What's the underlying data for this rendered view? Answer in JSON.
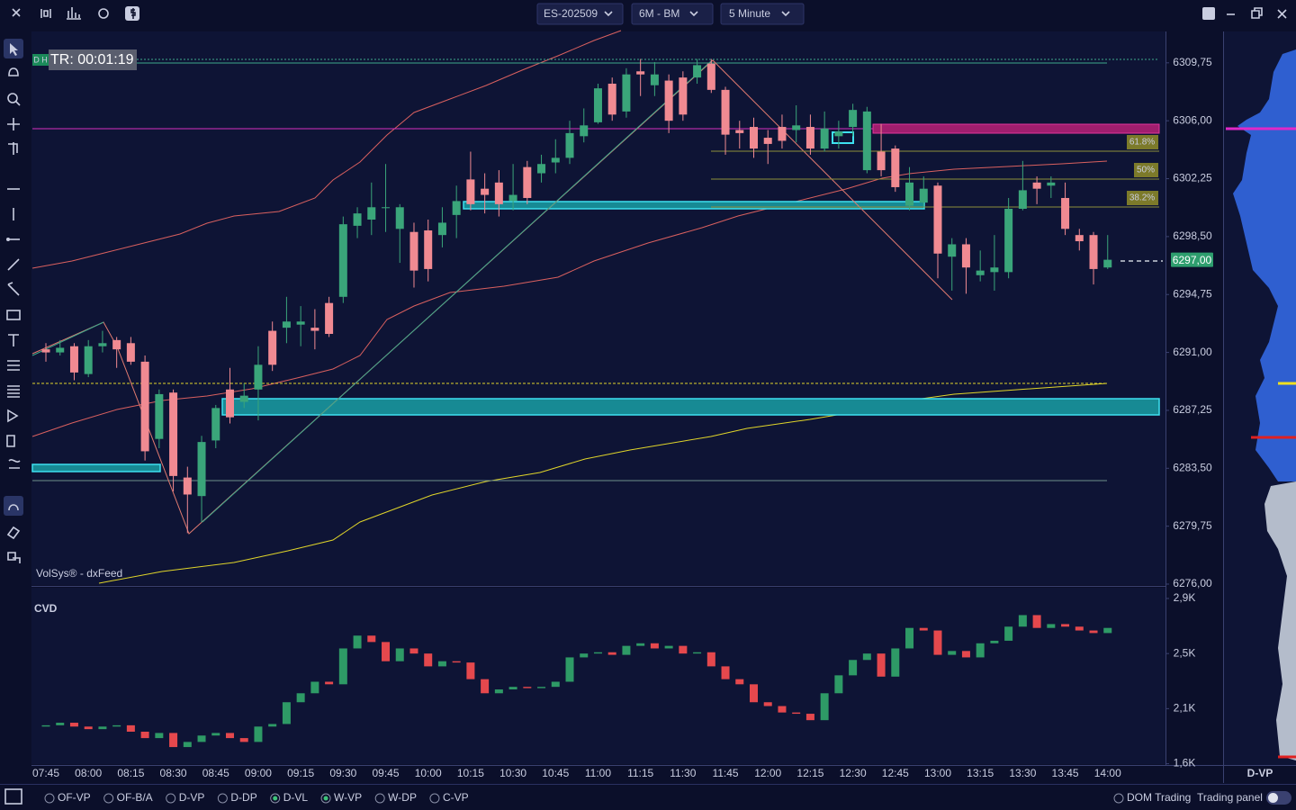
{
  "toolbar": {
    "symbol": "ES-202509",
    "range": "6M - BM",
    "interval": "5 Minute"
  },
  "timer": "TR: 00:01:19",
  "timer_tag": "D H",
  "watermark": "VolSys® - dxFeed",
  "fib_labels": [
    "61.8%",
    "50%",
    "38.2%"
  ],
  "profile_title": "D-VP",
  "footer": {
    "options": [
      {
        "label": "OF-VP",
        "selected": false
      },
      {
        "label": "OF-B/A",
        "selected": false
      },
      {
        "label": "D-VP",
        "selected": false
      },
      {
        "label": "D-DP",
        "selected": false
      },
      {
        "label": "D-VL",
        "selected": true
      },
      {
        "label": "W-VP",
        "selected": true
      },
      {
        "label": "W-DP",
        "selected": false
      },
      {
        "label": "C-VP",
        "selected": false
      }
    ],
    "dom": "DOM Trading",
    "panel": "Trading panel"
  },
  "chart_data": [
    {
      "type": "candlestick",
      "up_color": "#3aa57a",
      "down_color": "#f08a92",
      "ylim": [
        6276,
        6311.75
      ],
      "yticks": [
        {
          "value": 6309.75,
          "label": "6309,75"
        },
        {
          "value": 6306,
          "label": "6306,00"
        },
        {
          "value": 6302.25,
          "label": "6302,25"
        },
        {
          "value": 6298.5,
          "label": "6298,50"
        },
        {
          "value": 6294.75,
          "label": "6294,75"
        },
        {
          "value": 6291,
          "label": "6291,00"
        },
        {
          "value": 6287.25,
          "label": "6287,25"
        },
        {
          "value": 6283.5,
          "label": "6283,50"
        },
        {
          "value": 6279.75,
          "label": "6279,75"
        },
        {
          "value": 6276,
          "label": "6276,00"
        }
      ],
      "last_price": {
        "value": 6297,
        "label": "6297,00"
      },
      "categories": [
        "07:45",
        null,
        null,
        "08:00",
        null,
        null,
        "08:15",
        null,
        null,
        "08:30",
        null,
        null,
        "08:45",
        null,
        null,
        "09:00",
        null,
        null,
        "09:15",
        null,
        null,
        "09:30",
        null,
        null,
        "09:45",
        null,
        null,
        "10:00",
        null,
        null,
        "10:15",
        null,
        null,
        "10:30",
        null,
        null,
        "10:45",
        null,
        null,
        "11:00",
        null,
        null,
        "11:15",
        null,
        null,
        "11:30",
        null,
        null,
        "11:45",
        null,
        null,
        "12:00",
        null,
        null,
        "12:15",
        null,
        null,
        "12:30",
        null,
        null,
        "12:45",
        null,
        null,
        "13:00",
        null,
        null,
        "13:15",
        null,
        null,
        "13:30",
        null,
        null,
        "13:45",
        null,
        null,
        "14:00"
      ],
      "open": [
        6291.2,
        6291.0,
        6291.4,
        6289.6,
        6291.4,
        6291.8,
        6291.6,
        6290.4,
        6285.4,
        6288.4,
        6282.9,
        6281.7,
        6285.3,
        6288.6,
        6287.8,
        6288.6,
        6292.4,
        6292.6,
        6292.8,
        6292.6,
        6294.2,
        6294.6,
        6299.2,
        6299.6,
        6300.4,
        6299.0,
        6298.8,
        6298.9,
        6298.6,
        6299.9,
        6302.2,
        6301.6,
        6302.0,
        6300.8,
        6303.0,
        6302.6,
        6303.3,
        6303.6,
        6305.0,
        6305.9,
        6308.4,
        6306.6,
        6309.2,
        6308.3,
        6308.6,
        6308.8,
        6308.8,
        6309.7,
        6308.0,
        6305.4,
        6305.6,
        6304.9,
        6305.6,
        6305.4,
        6305.6,
        6304.2,
        6305.0,
        6305.6,
        6302.8,
        6304.0,
        6304.2,
        6300.5,
        6300.7,
        6301.8,
        6297.2,
        6298.0,
        6296.0,
        6296.2,
        6296.2,
        6300.3,
        6302.0,
        6301.8,
        6301.0,
        6298.6,
        6298.6,
        6296.5
      ],
      "high": [
        6291.6,
        6291.8,
        6291.6,
        6291.8,
        6292.4,
        6292.0,
        6292.0,
        6290.8,
        6288.6,
        6288.6,
        6283.6,
        6285.6,
        6287.6,
        6290.0,
        6289.0,
        6291.4,
        6293.0,
        6294.6,
        6294.0,
        6293.8,
        6294.6,
        6299.8,
        6300.4,
        6302.0,
        6303.2,
        6300.6,
        6299.4,
        6299.6,
        6300.4,
        6301.8,
        6304.0,
        6302.6,
        6302.8,
        6303.2,
        6303.4,
        6303.8,
        6304.8,
        6306.0,
        6306.8,
        6308.4,
        6308.8,
        6309.4,
        6310.0,
        6309.8,
        6309.0,
        6309.2,
        6310.0,
        6310.0,
        6308.2,
        6306.0,
        6306.2,
        6305.4,
        6306.4,
        6307.0,
        6306.4,
        6306.6,
        6306.0,
        6307.1,
        6306.9,
        6305.8,
        6304.4,
        6303.0,
        6302.4,
        6302.0,
        6298.4,
        6298.4,
        6297.6,
        6298.6,
        6301.0,
        6303.4,
        6302.4,
        6302.4,
        6302.0,
        6299.0,
        6298.8,
        6298.6
      ],
      "low": [
        6290.4,
        6290.8,
        6289.2,
        6289.4,
        6291.0,
        6290.0,
        6290.2,
        6284.0,
        6284.8,
        6282.0,
        6279.3,
        6280.0,
        6284.8,
        6286.4,
        6287.4,
        6286.6,
        6289.8,
        6291.6,
        6291.4,
        6291.2,
        6292.0,
        6294.2,
        6298.4,
        6298.6,
        6298.8,
        6296.8,
        6295.2,
        6295.6,
        6297.8,
        6298.4,
        6300.2,
        6300.0,
        6299.8,
        6300.2,
        6300.6,
        6302.0,
        6302.6,
        6303.2,
        6304.6,
        6305.8,
        6306.0,
        6306.2,
        6307.6,
        6307.6,
        6305.2,
        6306.0,
        6308.4,
        6307.8,
        6303.8,
        6304.2,
        6303.6,
        6303.2,
        6304.2,
        6304.6,
        6303.8,
        6304.0,
        6304.2,
        6305.0,
        6302.6,
        6302.4,
        6301.4,
        6300.2,
        6300.4,
        6295.8,
        6295.0,
        6294.8,
        6295.6,
        6295.0,
        6295.8,
        6300.2,
        6300.6,
        6301.0,
        6298.6,
        6297.6,
        6295.4,
        6296.4
      ],
      "close": [
        6291.0,
        6291.3,
        6289.7,
        6291.4,
        6291.6,
        6291.2,
        6290.4,
        6284.6,
        6288.3,
        6283.0,
        6281.8,
        6285.2,
        6287.4,
        6286.8,
        6288.2,
        6290.2,
        6290.2,
        6293.0,
        6293.0,
        6292.4,
        6292.2,
        6299.3,
        6300.0,
        6300.4,
        6300.4,
        6300.4,
        6296.3,
        6296.4,
        6299.4,
        6300.8,
        6300.6,
        6301.2,
        6300.6,
        6301.2,
        6301.0,
        6303.2,
        6303.6,
        6305.2,
        6305.7,
        6308.1,
        6306.4,
        6309.0,
        6309.0,
        6309.0,
        6306.0,
        6306.4,
        6309.6,
        6308.0,
        6305.1,
        6305.2,
        6304.2,
        6304.5,
        6304.7,
        6305.7,
        6304.2,
        6305.5,
        6305.3,
        6306.7,
        6306.6,
        6302.8,
        6301.7,
        6302.0,
        6301.6,
        6297.4,
        6298.0,
        6296.5,
        6296.3,
        6296.5,
        6300.3,
        6301.5,
        6301.6,
        6302.0,
        6299.0,
        6298.2,
        6296.4,
        6297.0
      ]
    },
    {
      "type": "candlestick",
      "title": "CVD",
      "up_color": "#2e9a66",
      "down_color": "#e5484d",
      "ylim": [
        1.62,
        2.99
      ],
      "yticks": [
        {
          "value": 2.92,
          "label": "2,9K"
        },
        {
          "value": 2.49,
          "label": "2,5K"
        },
        {
          "value": 2.06,
          "label": "2,1K"
        },
        {
          "value": 1.63,
          "label": "1,6K"
        }
      ],
      "open": [
        1.92,
        1.93,
        1.95,
        1.92,
        1.9,
        1.92,
        1.93,
        1.88,
        1.83,
        1.87,
        1.76,
        1.8,
        1.85,
        1.87,
        1.83,
        1.8,
        1.92,
        1.94,
        2.11,
        2.18,
        2.27,
        2.25,
        2.53,
        2.63,
        2.58,
        2.43,
        2.53,
        2.49,
        2.39,
        2.43,
        2.42,
        2.29,
        2.18,
        2.21,
        2.23,
        2.22,
        2.23,
        2.27,
        2.46,
        2.49,
        2.5,
        2.48,
        2.55,
        2.57,
        2.53,
        2.55,
        2.49,
        2.5,
        2.39,
        2.29,
        2.25,
        2.11,
        2.08,
        2.03,
        2.02,
        1.97,
        2.18,
        2.32,
        2.44,
        2.49,
        2.31,
        2.53,
        2.69,
        2.67,
        2.48,
        2.51,
        2.46,
        2.57,
        2.59,
        2.7,
        2.79,
        2.69,
        2.72,
        2.7,
        2.67,
        2.65
      ],
      "close": [
        1.93,
        1.95,
        1.92,
        1.9,
        1.92,
        1.93,
        1.88,
        1.83,
        1.87,
        1.76,
        1.8,
        1.85,
        1.87,
        1.83,
        1.8,
        1.92,
        1.94,
        2.11,
        2.18,
        2.27,
        2.25,
        2.53,
        2.63,
        2.58,
        2.43,
        2.53,
        2.49,
        2.39,
        2.43,
        2.42,
        2.29,
        2.18,
        2.21,
        2.23,
        2.22,
        2.23,
        2.27,
        2.46,
        2.49,
        2.5,
        2.48,
        2.55,
        2.57,
        2.53,
        2.55,
        2.49,
        2.5,
        2.39,
        2.29,
        2.25,
        2.11,
        2.08,
        2.03,
        2.02,
        1.97,
        2.18,
        2.32,
        2.44,
        2.49,
        2.31,
        2.53,
        2.69,
        2.67,
        2.48,
        2.51,
        2.46,
        2.57,
        2.59,
        2.7,
        2.79,
        2.69,
        2.72,
        2.7,
        2.67,
        2.65,
        2.69
      ]
    }
  ]
}
